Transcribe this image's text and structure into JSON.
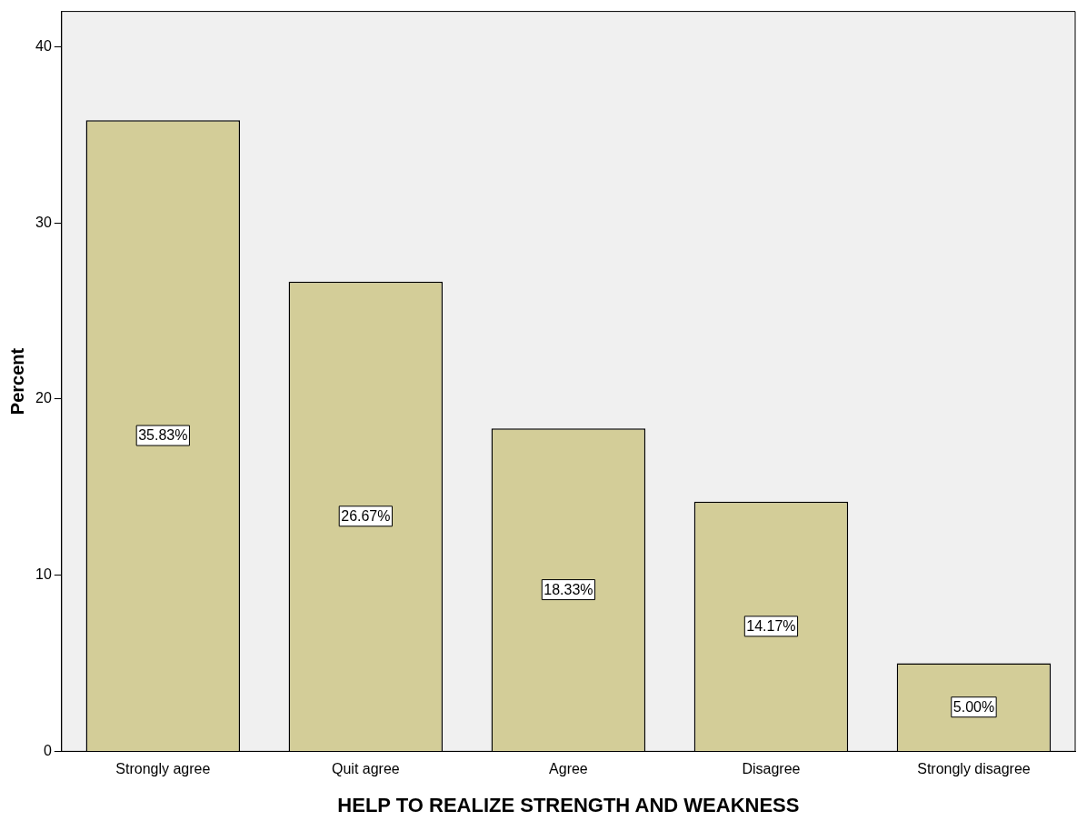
{
  "chart_data": {
    "type": "bar",
    "xlabel": "HELP TO REALIZE STRENGTH AND WEAKNESS",
    "ylabel": "Percent",
    "categories": [
      "Strongly agree",
      "Quit agree",
      "Agree",
      "Disagree",
      "Strongly disagree"
    ],
    "values": [
      35.83,
      26.67,
      18.33,
      14.17,
      5.0
    ],
    "value_labels": [
      "35.83%",
      "26.67%",
      "18.33%",
      "14.17%",
      "5.00%"
    ],
    "color": "#d3cd98",
    "ylim": [
      0,
      42
    ],
    "yticks": [
      0,
      10,
      20,
      30,
      40
    ],
    "grid": false,
    "legend": false
  }
}
